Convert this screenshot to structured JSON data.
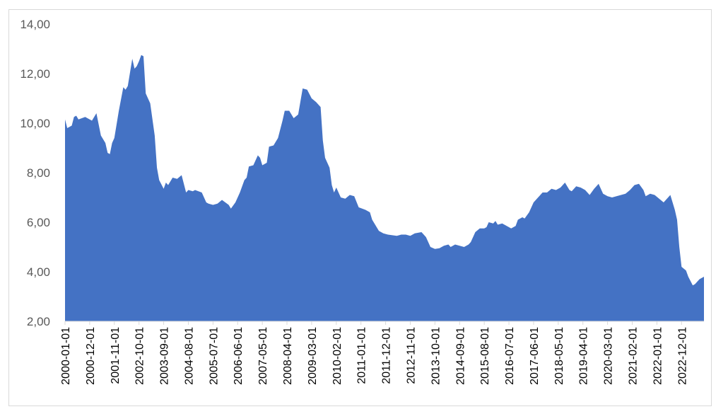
{
  "chart_data": {
    "type": "area",
    "title": "",
    "xlabel": "",
    "ylabel": "",
    "ylim": [
      2,
      14
    ],
    "xlim": [
      "2000-01-01",
      "2023-10-01"
    ],
    "y_ticks": [
      "2,00",
      "4,00",
      "6,00",
      "8,00",
      "10,00",
      "12,00",
      "14,00"
    ],
    "x_ticks": [
      "2000-01-01",
      "2000-12-01",
      "2001-11-01",
      "2002-10-01",
      "2003-09-01",
      "2004-08-01",
      "2005-07-01",
      "2006-06-01",
      "2007-05-01",
      "2008-04-01",
      "2009-03-01",
      "2010-02-01",
      "2011-01-01",
      "2011-12-01",
      "2012-11-01",
      "2013-10-01",
      "2014-09-01",
      "2015-08-01",
      "2016-07-01",
      "2017-06-01",
      "2018-05-01",
      "2019-04-01",
      "2020-03-01",
      "2021-02-01",
      "2022-01-01",
      "2022-12-01"
    ],
    "grid": false,
    "legend": "none",
    "color": "#4472c4",
    "series": [
      {
        "points": [
          [
            "2000-01-01",
            10.15
          ],
          [
            "2000-02-01",
            9.8
          ],
          [
            "2000-04-01",
            9.9
          ],
          [
            "2000-05-01",
            10.25
          ],
          [
            "2000-06-01",
            10.3
          ],
          [
            "2000-07-01",
            10.15
          ],
          [
            "2000-10-01",
            10.25
          ],
          [
            "2000-12-01",
            10.15
          ],
          [
            "2001-01-01",
            10.1
          ],
          [
            "2001-03-01",
            10.4
          ],
          [
            "2001-05-01",
            9.5
          ],
          [
            "2001-07-01",
            9.2
          ],
          [
            "2001-08-01",
            8.8
          ],
          [
            "2001-09-01",
            8.75
          ],
          [
            "2001-10-01",
            9.2
          ],
          [
            "2001-11-01",
            9.4
          ],
          [
            "2002-01-01",
            10.5
          ],
          [
            "2002-03-01",
            11.45
          ],
          [
            "2002-04-01",
            11.35
          ],
          [
            "2002-05-01",
            11.5
          ],
          [
            "2002-07-01",
            12.6
          ],
          [
            "2002-08-01",
            12.2
          ],
          [
            "2002-09-01",
            12.3
          ],
          [
            "2002-10-01",
            12.5
          ],
          [
            "2002-11-01",
            12.75
          ],
          [
            "2002-12-01",
            12.7
          ],
          [
            "2003-01-01",
            11.2
          ],
          [
            "2003-03-01",
            10.8
          ],
          [
            "2003-05-01",
            9.5
          ],
          [
            "2003-06-01",
            8.2
          ],
          [
            "2003-07-01",
            7.7
          ],
          [
            "2003-09-01",
            7.35
          ],
          [
            "2003-10-01",
            7.6
          ],
          [
            "2003-11-01",
            7.5
          ],
          [
            "2004-01-01",
            7.8
          ],
          [
            "2004-03-01",
            7.75
          ],
          [
            "2004-05-01",
            7.9
          ],
          [
            "2004-07-01",
            7.2
          ],
          [
            "2004-08-01",
            7.3
          ],
          [
            "2004-10-01",
            7.25
          ],
          [
            "2004-11-01",
            7.3
          ],
          [
            "2005-02-01",
            7.2
          ],
          [
            "2005-04-01",
            6.8
          ],
          [
            "2005-05-01",
            6.75
          ],
          [
            "2005-07-01",
            6.7
          ],
          [
            "2005-09-01",
            6.75
          ],
          [
            "2005-11-01",
            6.9
          ],
          [
            "2006-02-01",
            6.7
          ],
          [
            "2006-03-01",
            6.55
          ],
          [
            "2006-05-01",
            6.8
          ],
          [
            "2006-07-01",
            7.2
          ],
          [
            "2006-09-01",
            7.7
          ],
          [
            "2006-10-01",
            7.8
          ],
          [
            "2006-11-01",
            8.25
          ],
          [
            "2007-01-01",
            8.3
          ],
          [
            "2007-03-01",
            8.7
          ],
          [
            "2007-04-01",
            8.6
          ],
          [
            "2007-05-01",
            8.3
          ],
          [
            "2007-07-01",
            8.4
          ],
          [
            "2007-08-01",
            9.05
          ],
          [
            "2007-10-01",
            9.1
          ],
          [
            "2007-12-01",
            9.4
          ],
          [
            "2008-02-01",
            10.1
          ],
          [
            "2008-03-01",
            10.5
          ],
          [
            "2008-05-01",
            10.5
          ],
          [
            "2008-07-01",
            10.2
          ],
          [
            "2008-09-01",
            10.35
          ],
          [
            "2008-11-01",
            11.4
          ],
          [
            "2009-01-01",
            11.35
          ],
          [
            "2009-03-01",
            11.0
          ],
          [
            "2009-05-01",
            10.85
          ],
          [
            "2009-07-01",
            10.65
          ],
          [
            "2009-08-01",
            9.3
          ],
          [
            "2009-09-01",
            8.6
          ],
          [
            "2009-11-01",
            8.2
          ],
          [
            "2009-12-01",
            7.5
          ],
          [
            "2010-01-01",
            7.2
          ],
          [
            "2010-02-01",
            7.4
          ],
          [
            "2010-04-01",
            7.0
          ],
          [
            "2010-06-01",
            6.95
          ],
          [
            "2010-08-01",
            7.1
          ],
          [
            "2010-10-01",
            7.05
          ],
          [
            "2010-12-01",
            6.6
          ],
          [
            "2011-03-01",
            6.5
          ],
          [
            "2011-05-01",
            6.4
          ],
          [
            "2011-06-01",
            6.1
          ],
          [
            "2011-07-01",
            5.95
          ],
          [
            "2011-09-01",
            5.65
          ],
          [
            "2011-11-01",
            5.55
          ],
          [
            "2012-01-01",
            5.5
          ],
          [
            "2012-05-01",
            5.45
          ],
          [
            "2012-07-01",
            5.5
          ],
          [
            "2012-09-01",
            5.5
          ],
          [
            "2012-11-01",
            5.45
          ],
          [
            "2013-01-01",
            5.55
          ],
          [
            "2013-04-01",
            5.6
          ],
          [
            "2013-06-01",
            5.4
          ],
          [
            "2013-08-01",
            5.0
          ],
          [
            "2013-10-01",
            4.92
          ],
          [
            "2013-12-01",
            4.95
          ],
          [
            "2014-02-01",
            5.05
          ],
          [
            "2014-04-01",
            5.1
          ],
          [
            "2014-05-01",
            5.0
          ],
          [
            "2014-07-01",
            5.1
          ],
          [
            "2014-09-01",
            5.05
          ],
          [
            "2014-11-01",
            5.0
          ],
          [
            "2015-01-01",
            5.1
          ],
          [
            "2015-02-01",
            5.2
          ],
          [
            "2015-04-01",
            5.6
          ],
          [
            "2015-06-01",
            5.75
          ],
          [
            "2015-08-01",
            5.75
          ],
          [
            "2015-09-01",
            5.8
          ],
          [
            "2015-10-01",
            6.0
          ],
          [
            "2015-12-01",
            5.95
          ],
          [
            "2016-01-01",
            6.05
          ],
          [
            "2016-02-01",
            5.9
          ],
          [
            "2016-04-01",
            5.95
          ],
          [
            "2016-06-01",
            5.85
          ],
          [
            "2016-08-01",
            5.75
          ],
          [
            "2016-10-01",
            5.85
          ],
          [
            "2016-11-01",
            6.1
          ],
          [
            "2017-01-01",
            6.2
          ],
          [
            "2017-02-01",
            6.15
          ],
          [
            "2017-04-01",
            6.4
          ],
          [
            "2017-06-01",
            6.8
          ],
          [
            "2017-08-01",
            7.0
          ],
          [
            "2017-10-01",
            7.2
          ],
          [
            "2017-12-01",
            7.2
          ],
          [
            "2018-02-01",
            7.35
          ],
          [
            "2018-04-01",
            7.3
          ],
          [
            "2018-06-01",
            7.4
          ],
          [
            "2018-08-01",
            7.6
          ],
          [
            "2018-10-01",
            7.3
          ],
          [
            "2018-11-01",
            7.25
          ],
          [
            "2019-01-01",
            7.45
          ],
          [
            "2019-03-01",
            7.4
          ],
          [
            "2019-05-01",
            7.3
          ],
          [
            "2019-07-01",
            7.1
          ],
          [
            "2019-09-01",
            7.35
          ],
          [
            "2019-11-01",
            7.55
          ],
          [
            "2020-01-01",
            7.15
          ],
          [
            "2020-03-01",
            7.05
          ],
          [
            "2020-05-01",
            7.0
          ],
          [
            "2020-07-01",
            7.05
          ],
          [
            "2020-09-01",
            7.1
          ],
          [
            "2020-11-01",
            7.15
          ],
          [
            "2021-01-01",
            7.3
          ],
          [
            "2021-03-01",
            7.5
          ],
          [
            "2021-05-01",
            7.55
          ],
          [
            "2021-07-01",
            7.3
          ],
          [
            "2021-08-01",
            7.05
          ],
          [
            "2021-10-01",
            7.15
          ],
          [
            "2021-12-01",
            7.1
          ],
          [
            "2022-02-01",
            6.95
          ],
          [
            "2022-04-01",
            6.8
          ],
          [
            "2022-06-01",
            7.0
          ],
          [
            "2022-07-01",
            7.1
          ],
          [
            "2022-08-01",
            6.8
          ],
          [
            "2022-09-01",
            6.5
          ],
          [
            "2022-10-01",
            6.1
          ],
          [
            "2022-11-01",
            5.0
          ],
          [
            "2022-12-01",
            4.2
          ],
          [
            "2023-02-01",
            4.05
          ],
          [
            "2023-03-01",
            3.8
          ],
          [
            "2023-05-01",
            3.45
          ],
          [
            "2023-06-01",
            3.5
          ],
          [
            "2023-08-01",
            3.7
          ],
          [
            "2023-10-01",
            3.8
          ]
        ]
      }
    ]
  }
}
